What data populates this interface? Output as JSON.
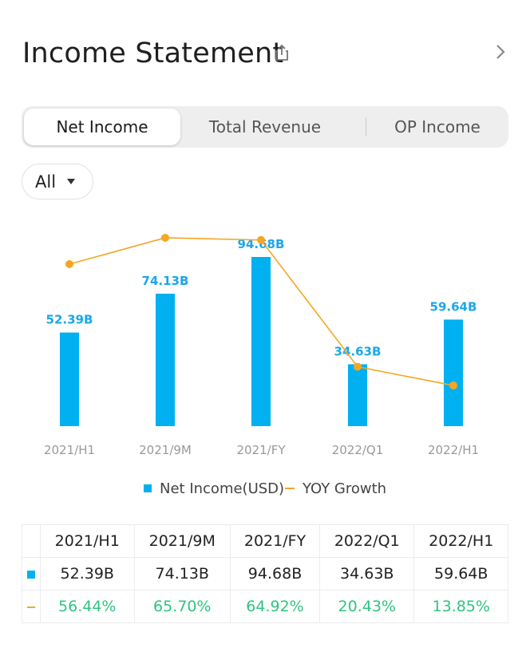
{
  "header": {
    "title": "Income Statement"
  },
  "tabs": [
    {
      "label": "Net Income",
      "active": true
    },
    {
      "label": "Total Revenue",
      "active": false
    },
    {
      "label": "OP Income",
      "active": false
    }
  ],
  "filter": {
    "selected": "All"
  },
  "legend": {
    "bar_label": "Net Income(USD)",
    "line_label": "YOY Growth"
  },
  "colors": {
    "bar": "#00b0f0",
    "line": "#f5a623",
    "positive": "#2fc480"
  },
  "icons": {
    "share": "share-icon",
    "chevron": "chevron-right-icon",
    "caret": "caret-down-icon"
  },
  "chart_data": {
    "type": "bar",
    "categories": [
      "2021/H1",
      "2021/9M",
      "2021/FY",
      "2022/Q1",
      "2022/H1"
    ],
    "series": [
      {
        "name": "Net Income(USD)",
        "type": "bar",
        "values": [
          52.39,
          74.13,
          94.68,
          34.63,
          59.64
        ],
        "labels": [
          "52.39B",
          "74.13B",
          "94.68B",
          "34.63B",
          "59.64B"
        ]
      },
      {
        "name": "YOY Growth",
        "type": "line",
        "values": [
          56.44,
          65.7,
          64.92,
          20.43,
          13.85
        ]
      }
    ]
  },
  "table": {
    "headers": [
      "2021/H1",
      "2021/9M",
      "2021/FY",
      "2022/Q1",
      "2022/H1"
    ],
    "net_income": [
      "52.39B",
      "74.13B",
      "94.68B",
      "34.63B",
      "59.64B"
    ],
    "yoy_growth": [
      "56.44%",
      "65.70%",
      "64.92%",
      "20.43%",
      "13.85%"
    ]
  }
}
